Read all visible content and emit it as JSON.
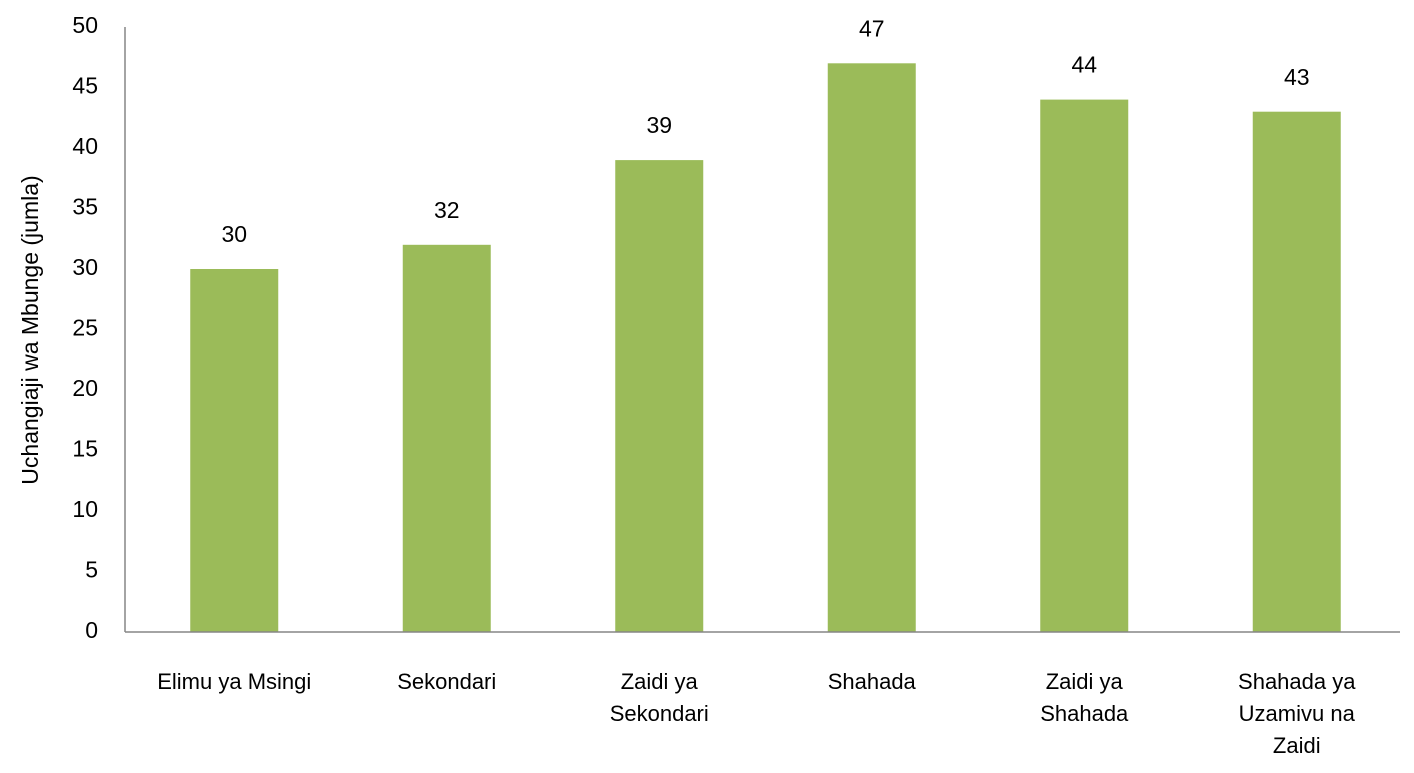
{
  "chart_data": {
    "type": "bar",
    "y_label": "Uchangiaji wa Mbunge (jumla)",
    "categories": [
      "Elimu ya Msingi",
      "Sekondari",
      "Zaidi ya Sekondari",
      "Shahada",
      "Zaidi ya Shahada",
      "Shahada ya Uzamivu na Zaidi"
    ],
    "values": [
      30,
      32,
      39,
      47,
      44,
      43
    ],
    "color": "#9bbb59",
    "ylim": [
      0,
      50
    ],
    "yticks": [
      0,
      5,
      10,
      15,
      20,
      25,
      30,
      35,
      40,
      45,
      50
    ],
    "grid": false
  }
}
